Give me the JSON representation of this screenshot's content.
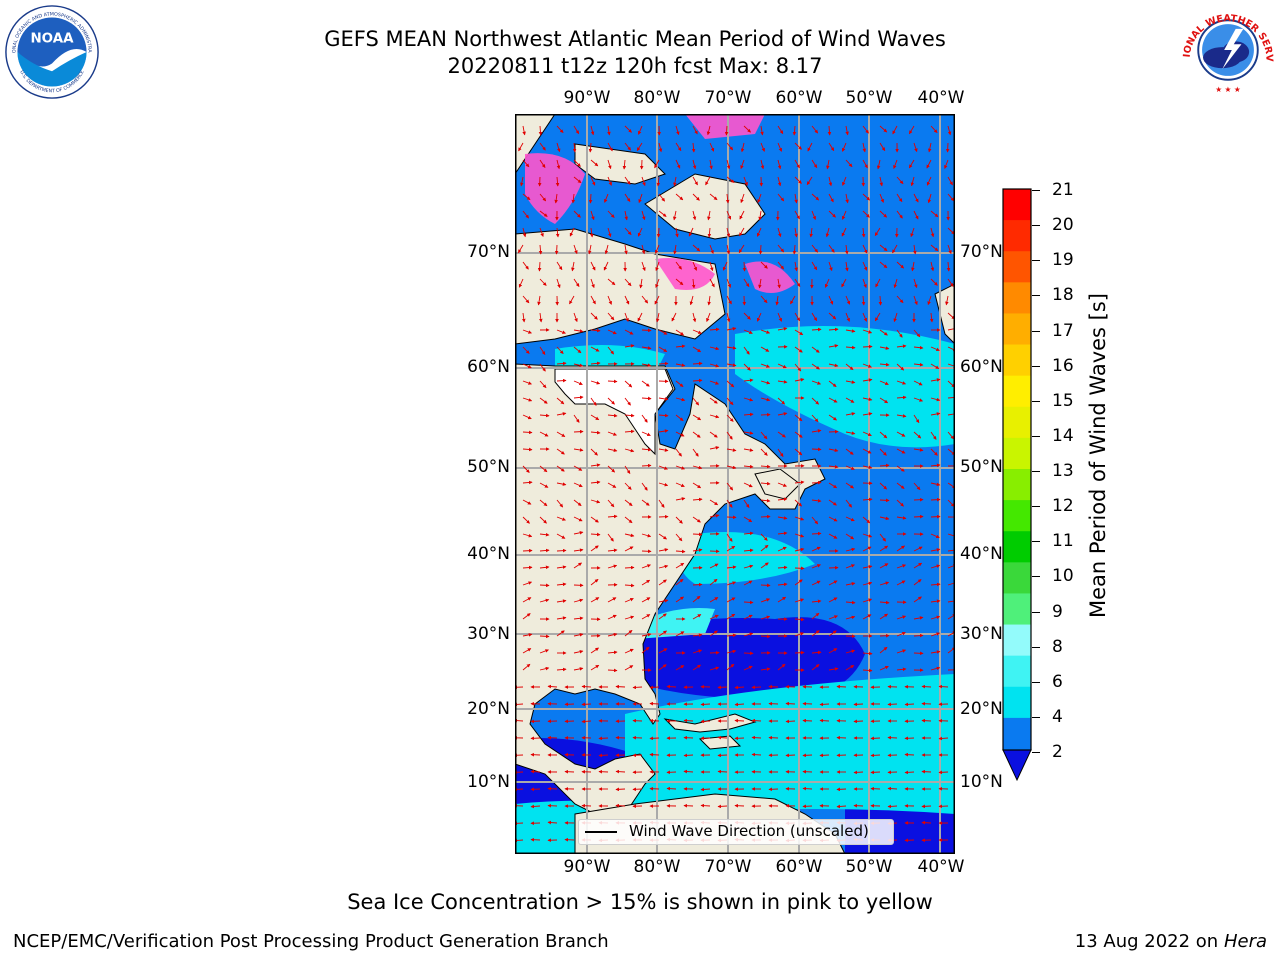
{
  "title": {
    "line1": "GEFS MEAN Northwest Atlantic Mean Period of Wind Waves",
    "line2": "20220811 t12z 120h fcst   Max: 8.17"
  },
  "map": {
    "lon_ticks": [
      "90°W",
      "80°W",
      "70°W",
      "60°W",
      "50°W",
      "40°W"
    ],
    "lat_ticks": [
      "70°N",
      "60°N",
      "50°N",
      "40°N",
      "30°N",
      "20°N",
      "10°N"
    ],
    "legend_label": "Wind Wave Direction (unscaled)",
    "extent": {
      "lon_min": -100,
      "lon_max": -38,
      "lat_min": 3,
      "lat_max": 80
    }
  },
  "colorbar": {
    "title": "Mean Period of Wind Waves [s]",
    "ticks": [
      "2",
      "4",
      "6",
      "8",
      "9",
      "10",
      "11",
      "12",
      "13",
      "14",
      "15",
      "16",
      "17",
      "18",
      "19",
      "20",
      "21"
    ],
    "colors": [
      "#0a7af0",
      "#00e3f0",
      "#3ff3f3",
      "#93fbfb",
      "#4ff07a",
      "#3ad83a",
      "#00cc00",
      "#44e800",
      "#88ee00",
      "#c9f500",
      "#e8f000",
      "#ffee00",
      "#ffd000",
      "#ffae00",
      "#ff8a00",
      "#ff5500",
      "#ff2a00",
      "#ff0000"
    ],
    "under_color": "#0a10e0"
  },
  "caption": "Sea Ice Concentration > 15% is shown in pink to yellow",
  "footer": {
    "left": "NCEP/EMC/Verification Post Processing Product Generation Branch",
    "date": "13 Aug 2022 on",
    "machine": "Hera"
  },
  "logos": {
    "noaa_text": "NOAA",
    "noaa_ring": "NATIONAL OCEANIC AND ATMOSPHERIC ADMINISTRATION",
    "noaa_ring_bottom": "U.S. DEPARTMENT OF COMMERCE",
    "nws_ring": "NATIONAL WEATHER SERVICE"
  }
}
